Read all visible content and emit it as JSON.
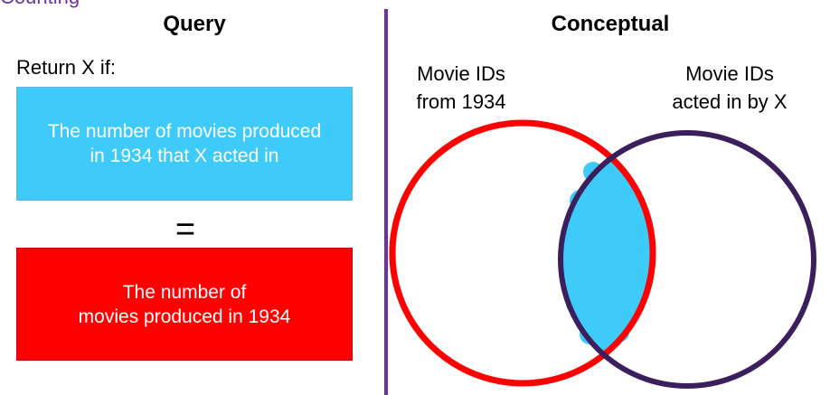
{
  "slide": {
    "clipped_title": "Counting"
  },
  "query": {
    "title": "Query",
    "return_label": "Return X if:",
    "top_box_text": "The number of movies produced\nin 1934 that X acted in",
    "equals": "=",
    "bottom_box_text": "The number of\nmovies produced in 1934"
  },
  "conceptual": {
    "title": "Conceptual",
    "left_set_label": "Movie IDs\nfrom 1934",
    "right_set_label": "Movie IDs\nacted in by X"
  },
  "colors": {
    "purple": "#7030A0",
    "left_circle": "#FF0000",
    "right_circle": "#3B1F5C",
    "overlap_fill": "#3ECBFA",
    "top_box": "#3ECBFA",
    "bottom_box": "#FF0000"
  }
}
